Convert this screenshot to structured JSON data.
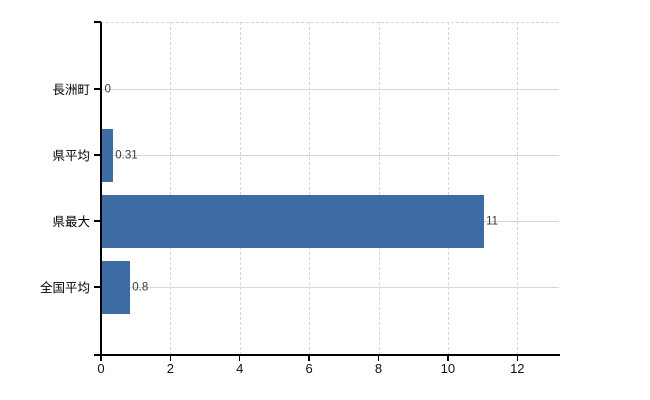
{
  "chart_data": {
    "type": "bar",
    "orientation": "horizontal",
    "title": "",
    "categories": [
      "長洲町",
      "県平均",
      "県最大",
      "全国平均"
    ],
    "values": [
      0,
      0.31,
      11,
      0.8
    ],
    "value_labels": [
      "0",
      "0.31",
      "11",
      "0.8"
    ],
    "x_ticks": [
      0,
      2,
      4,
      6,
      8,
      10,
      12
    ],
    "x_tick_labels": [
      "0",
      "2",
      "4",
      "6",
      "8",
      "10",
      "12"
    ],
    "xlim": [
      0,
      13.2
    ],
    "grid": true,
    "legend_position": "none",
    "bar_color": "#3e6da5"
  },
  "colors": {
    "background": "#ffffff",
    "bar": "#3e6da5",
    "axis": "#000000",
    "gridline_horizontal": "#d2d8d2",
    "gridline_vertical": "#d8d4d8",
    "value_label_text": "#3a3a3a",
    "tick_label_text": "#111111"
  }
}
